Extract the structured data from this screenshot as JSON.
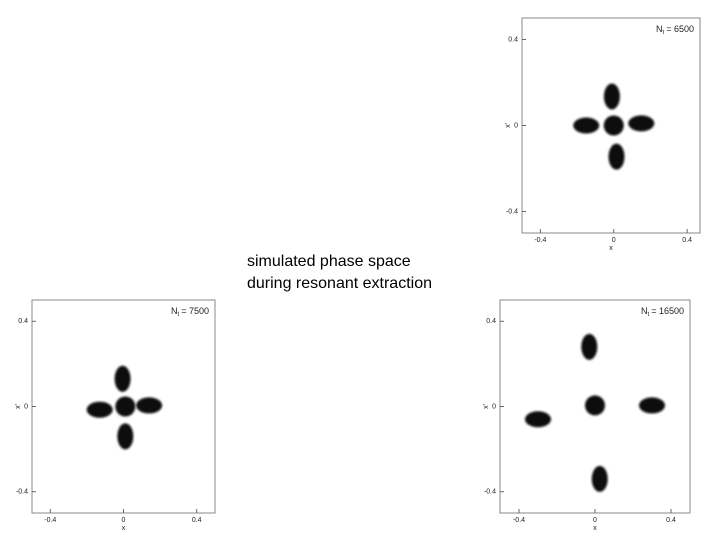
{
  "caption": [
    "simulated phase space",
    "during resonant extraction"
  ],
  "chart_data": [
    {
      "type": "scatter",
      "annotation": {
        "symbol": "N",
        "subscript": "t",
        "text": "= 6500"
      },
      "x_label": "x",
      "y_label": "x'",
      "xlim": [
        -0.5,
        0.47
      ],
      "ylim": [
        -0.5,
        0.5
      ],
      "xticks": [
        -0.4,
        0,
        0.4
      ],
      "yticks": [
        -0.4,
        0,
        0.4
      ],
      "series": [
        {
          "color": "#111111",
          "x": [
            0,
            -0.01,
            0.015,
            -0.15,
            0.15
          ],
          "values": [
            0,
            0.135,
            -0.145,
            0,
            0.01
          ]
        }
      ]
    },
    {
      "type": "scatter",
      "annotation": {
        "symbol": "N",
        "subscript": "t",
        "text": "= 7500"
      },
      "x_label": "x",
      "y_label": "x'",
      "xlim": [
        -0.5,
        0.5
      ],
      "ylim": [
        -0.5,
        0.5
      ],
      "xticks": [
        -0.4,
        0,
        0.4
      ],
      "yticks": [
        -0.4,
        0,
        0.4
      ],
      "series": [
        {
          "color": "#111111",
          "x": [
            0.01,
            -0.005,
            0.01,
            -0.13,
            0.14
          ],
          "values": [
            0,
            0.13,
            -0.14,
            -0.015,
            0.005
          ]
        }
      ]
    },
    {
      "type": "scatter",
      "annotation": {
        "symbol": "N",
        "subscript": "t",
        "text": "= 16500"
      },
      "x_label": "x",
      "y_label": "x'",
      "xlim": [
        -0.5,
        0.5
      ],
      "ylim": [
        -0.5,
        0.5
      ],
      "xticks": [
        -0.4,
        0,
        0.4
      ],
      "yticks": [
        -0.4,
        0,
        0.4
      ],
      "series": [
        {
          "color": "#111111",
          "x": [
            0,
            -0.03,
            0.025,
            -0.3,
            0.3
          ],
          "values": [
            0.005,
            0.28,
            -0.34,
            -0.06,
            0.005
          ]
        }
      ]
    }
  ]
}
